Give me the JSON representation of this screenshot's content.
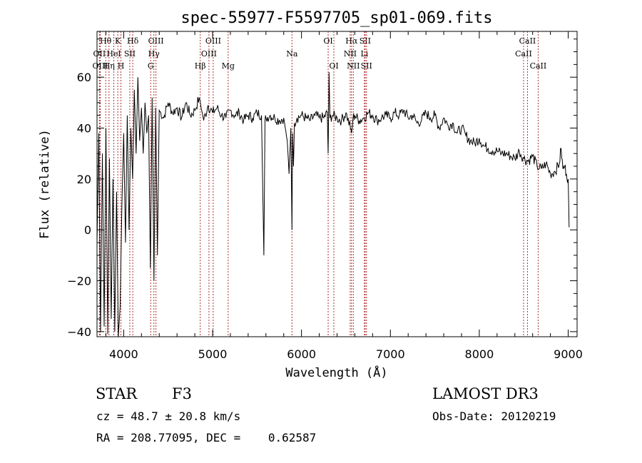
{
  "chart_data": {
    "type": "line",
    "title": "spec-55977-F5597705_sp01-069.fits",
    "xlabel": "Wavelength (Å)",
    "ylabel": "Flux (relative)",
    "xlim": [
      3700,
      9100
    ],
    "ylim": [
      -42,
      78
    ],
    "xticks": [
      4000,
      5000,
      6000,
      7000,
      8000,
      9000
    ],
    "yticks": [
      -40,
      -20,
      0,
      20,
      40,
      60
    ],
    "grid": false,
    "series": [
      {
        "x": [
          3700,
          3720,
          3740,
          3760,
          3780,
          3800,
          3820,
          3840,
          3860,
          3880,
          3900,
          3920,
          3940,
          3960,
          3980,
          4000,
          4020,
          4040,
          4060,
          4080,
          4100,
          4120,
          4140,
          4160,
          4180,
          4200,
          4220,
          4240,
          4260,
          4280,
          4300,
          4320,
          4340,
          4360,
          4380,
          4400,
          4450,
          4500,
          4550,
          4600,
          4650,
          4700,
          4750,
          4800,
          4850,
          4900,
          4950,
          5000,
          5050,
          5100,
          5150,
          5200,
          5250,
          5300,
          5350,
          5400,
          5450,
          5500,
          5550,
          5577,
          5590,
          5600,
          5650,
          5700,
          5750,
          5800,
          5840,
          5860,
          5880,
          5893,
          5900,
          5910,
          5920,
          5950,
          6000,
          6050,
          6100,
          6150,
          6200,
          6250,
          6290,
          6300,
          6310,
          6320,
          6350,
          6400,
          6450,
          6500,
          6550,
          6563,
          6580,
          6600,
          6650,
          6700,
          6750,
          6800,
          6850,
          6900,
          6950,
          7000,
          7050,
          7100,
          7150,
          7200,
          7250,
          7300,
          7350,
          7400,
          7450,
          7500,
          7550,
          7600,
          7650,
          7700,
          7750,
          7800,
          7850,
          7900,
          7950,
          8000,
          8050,
          8100,
          8150,
          8200,
          8250,
          8300,
          8350,
          8400,
          8450,
          8500,
          8550,
          8600,
          8650,
          8700,
          8750,
          8800,
          8850,
          8900,
          8920,
          8940,
          8960,
          8980,
          9000,
          9010
        ],
        "y": [
          -5,
          38,
          -40,
          30,
          -38,
          40,
          -41,
          28,
          -35,
          20,
          -40,
          15,
          -42,
          -30,
          10,
          38,
          -5,
          45,
          0,
          40,
          20,
          55,
          30,
          60,
          35,
          48,
          30,
          50,
          38,
          45,
          -15,
          52,
          -20,
          48,
          -10,
          47,
          44,
          50,
          46,
          48,
          44,
          50,
          45,
          47,
          52,
          43,
          49,
          46,
          48,
          45,
          44,
          47,
          45,
          46,
          43,
          45,
          44,
          46,
          45,
          -10,
          43,
          44,
          45,
          44,
          43,
          44,
          35,
          22,
          40,
          0,
          38,
          25,
          42,
          44,
          45,
          44,
          43,
          45,
          44,
          44,
          46,
          30,
          62,
          44,
          45,
          44,
          43,
          46,
          40,
          38,
          44,
          45,
          43,
          44,
          46,
          45,
          43,
          44,
          45,
          44,
          46,
          45,
          47,
          44,
          45,
          42,
          43,
          46,
          44,
          45,
          40,
          44,
          41,
          42,
          38,
          40,
          37,
          35,
          34,
          36,
          33,
          32,
          31,
          31,
          30,
          30,
          29,
          28,
          31,
          28,
          27,
          29,
          25,
          24,
          26,
          22,
          23,
          26,
          32,
          24,
          25,
          22,
          20,
          1
        ]
      }
    ],
    "lines": [
      {
        "name": "Hθ",
        "x": 3798,
        "row": 0
      },
      {
        "name": "OII",
        "x": 3727,
        "row": 1
      },
      {
        "name": "OIII",
        "x": 3736,
        "row": 2
      },
      {
        "name": "HeI",
        "x": 3889,
        "row": 1
      },
      {
        "name": "Hη",
        "x": 3835,
        "row": 2
      },
      {
        "name": "K",
        "x": 3934,
        "row": 0
      },
      {
        "name": "SII",
        "x": 4069,
        "row": 1
      },
      {
        "name": "H",
        "x": 3969,
        "row": 2
      },
      {
        "name": "Hδ",
        "x": 4102,
        "row": 0
      },
      {
        "name": "OIII",
        "x": 4363,
        "row": 0
      },
      {
        "name": "Hγ",
        "x": 4340,
        "row": 1
      },
      {
        "name": "G",
        "x": 4304,
        "row": 2
      },
      {
        "name": "Hβ",
        "x": 4861,
        "row": 2
      },
      {
        "name": "OIII",
        "x": 5007,
        "row": 0
      },
      {
        "name": "OIII",
        "x": 4959,
        "row": 1
      },
      {
        "name": "Mg",
        "x": 5175,
        "row": 2
      },
      {
        "name": "Na",
        "x": 5893,
        "row": 1
      },
      {
        "name": "OI",
        "x": 6300,
        "row": 0
      },
      {
        "name": "OI",
        "x": 6364,
        "row": 2
      },
      {
        "name": "Hα",
        "x": 6563,
        "row": 0
      },
      {
        "name": "NII",
        "x": 6548,
        "row": 1
      },
      {
        "name": "NII",
        "x": 6583,
        "row": 2
      },
      {
        "name": "SII",
        "x": 6716,
        "row": 0
      },
      {
        "name": "Li",
        "x": 6708,
        "row": 1
      },
      {
        "name": "SII",
        "x": 6731,
        "row": 2
      },
      {
        "name": "CaII",
        "x": 8542,
        "row": 0
      },
      {
        "name": "CaII",
        "x": 8498,
        "row": 1
      },
      {
        "name": "CaII",
        "x": 8662,
        "row": 2
      }
    ]
  },
  "info": {
    "class": "STAR",
    "subclass": "F3",
    "survey": "LAMOST DR3",
    "cz": "cz = 48.7 ± 20.8 km/s",
    "obs_date": "Obs-Date: 20120219",
    "radec": "RA = 208.77095, DEC =    0.62587"
  }
}
